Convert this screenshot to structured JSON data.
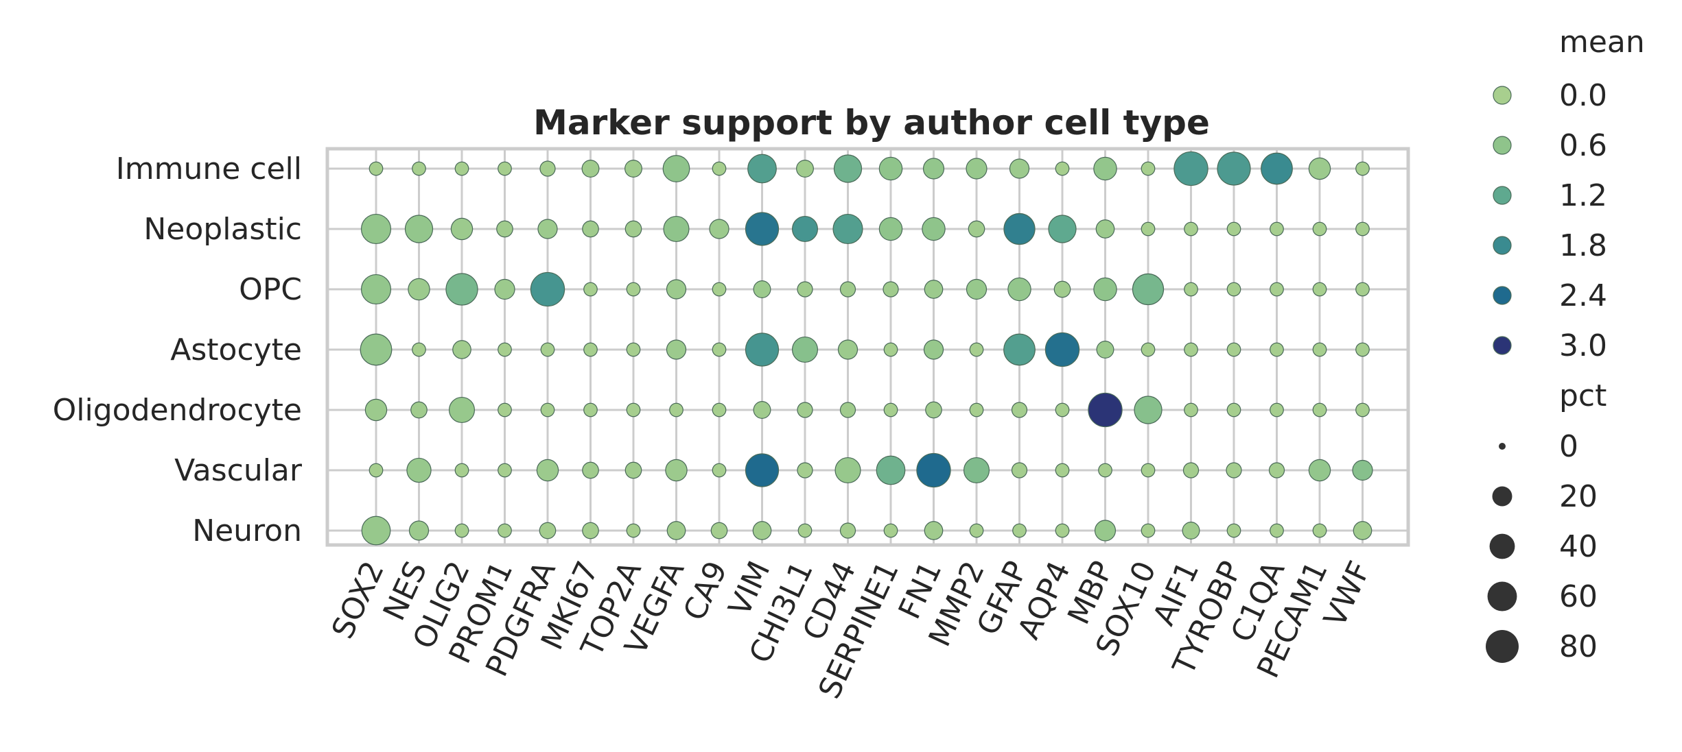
{
  "chart_data": {
    "type": "scatter",
    "title": "Marker support by author cell type",
    "xlabel": "",
    "ylabel": "",
    "grid": true,
    "legend_position": "right",
    "genes": [
      "SOX2",
      "NES",
      "OLIG2",
      "PROM1",
      "PDGFRA",
      "MKI67",
      "TOP2A",
      "VEGFA",
      "CA9",
      "VIM",
      "CHI3L1",
      "CD44",
      "SERPINE1",
      "FN1",
      "MMP2",
      "GFAP",
      "AQP4",
      "MBP",
      "SOX10",
      "AIF1",
      "TYROBP",
      "C1QA",
      "PECAM1",
      "VWF"
    ],
    "cell_types": [
      "Immune cell",
      "Neoplastic",
      "OPC",
      "Astocyte",
      "Oligodendrocyte",
      "Vascular",
      "Neuron"
    ],
    "mean": [
      [
        0.05,
        0.05,
        0.05,
        0.05,
        0.1,
        0.2,
        0.2,
        0.6,
        0.05,
        1.4,
        0.2,
        1.0,
        0.6,
        0.5,
        0.4,
        0.3,
        0.05,
        0.5,
        0.05,
        1.5,
        1.5,
        1.8,
        0.3,
        0.05
      ],
      [
        0.5,
        0.5,
        0.3,
        0.2,
        0.3,
        0.2,
        0.2,
        0.6,
        0.3,
        2.2,
        1.6,
        1.4,
        0.6,
        0.6,
        0.2,
        2.0,
        1.2,
        0.3,
        0.05,
        0.05,
        0.05,
        0.05,
        0.05,
        0.05
      ],
      [
        0.5,
        0.3,
        0.9,
        0.3,
        1.6,
        0.05,
        0.05,
        0.3,
        0.05,
        0.3,
        0.2,
        0.2,
        0.2,
        0.3,
        0.4,
        0.5,
        0.2,
        0.6,
        0.9,
        0.05,
        0.05,
        0.05,
        0.05,
        0.05
      ],
      [
        0.5,
        0.05,
        0.2,
        0.05,
        0.05,
        0.05,
        0.05,
        0.3,
        0.05,
        1.6,
        0.7,
        0.3,
        0.05,
        0.4,
        0.05,
        1.4,
        2.3,
        0.3,
        0.05,
        0.05,
        0.05,
        0.05,
        0.05,
        0.05
      ],
      [
        0.3,
        0.2,
        0.4,
        0.05,
        0.05,
        0.05,
        0.05,
        0.05,
        0.05,
        0.2,
        0.2,
        0.2,
        0.05,
        0.2,
        0.05,
        0.1,
        0.05,
        3.1,
        0.7,
        0.05,
        0.05,
        0.05,
        0.05,
        0.05
      ],
      [
        0.05,
        0.4,
        0.05,
        0.05,
        0.3,
        0.2,
        0.2,
        0.3,
        0.05,
        2.4,
        0.1,
        0.4,
        1.0,
        2.4,
        0.8,
        0.1,
        0.05,
        0.05,
        0.05,
        0.1,
        0.1,
        0.1,
        0.5,
        0.7
      ],
      [
        0.4,
        0.3,
        0.05,
        0.05,
        0.1,
        0.1,
        0.05,
        0.2,
        0.1,
        0.2,
        0.05,
        0.1,
        0.05,
        0.2,
        0.05,
        0.05,
        0.05,
        0.4,
        0.05,
        0.2,
        0.05,
        0.05,
        0.05,
        0.2
      ]
    ],
    "pct": [
      [
        5,
        5,
        5,
        5,
        8,
        12,
        12,
        45,
        5,
        55,
        12,
        50,
        30,
        22,
        22,
        18,
        5,
        30,
        5,
        85,
        80,
        70,
        25,
        5
      ],
      [
        60,
        50,
        25,
        10,
        18,
        10,
        10,
        40,
        18,
        80,
        40,
        60,
        30,
        30,
        10,
        68,
        50,
        15,
        5,
        5,
        5,
        5,
        5,
        5
      ],
      [
        60,
        25,
        72,
        20,
        85,
        5,
        5,
        18,
        5,
        12,
        8,
        8,
        8,
        15,
        20,
        30,
        10,
        30,
        68,
        5,
        5,
        5,
        5,
        5
      ],
      [
        70,
        5,
        15,
        5,
        5,
        5,
        5,
        18,
        5,
        80,
        40,
        18,
        5,
        18,
        5,
        70,
        85,
        12,
        5,
        5,
        5,
        5,
        5,
        5
      ],
      [
        25,
        10,
        40,
        5,
        5,
        5,
        5,
        5,
        5,
        12,
        8,
        8,
        5,
        10,
        5,
        8,
        5,
        85,
        50,
        5,
        5,
        5,
        5,
        5
      ],
      [
        5,
        35,
        5,
        5,
        25,
        10,
        10,
        25,
        5,
        80,
        8,
        40,
        55,
        85,
        40,
        8,
        5,
        5,
        5,
        8,
        8,
        8,
        25,
        20
      ],
      [
        55,
        18,
        5,
        5,
        10,
        10,
        5,
        15,
        10,
        15,
        5,
        8,
        5,
        15,
        5,
        5,
        5,
        22,
        5,
        12,
        5,
        5,
        5,
        15
      ]
    ],
    "legend": {
      "mean_title": "mean",
      "mean_values": [
        "0.0",
        "0.6",
        "1.2",
        "1.8",
        "2.4",
        "3.0"
      ],
      "pct_title": "pct",
      "pct_values": [
        "0",
        "20",
        "40",
        "60",
        "80"
      ]
    },
    "colors": {
      "grid": "#cccccc",
      "frame": "#cccccc",
      "dot_edge": "#4a6a58",
      "size_swatch": "#333333",
      "palette": [
        "#a8cf8e",
        "#8fc48b",
        "#5fa98f",
        "#3a8b90",
        "#1f6a8e",
        "#2b3476"
      ]
    }
  }
}
